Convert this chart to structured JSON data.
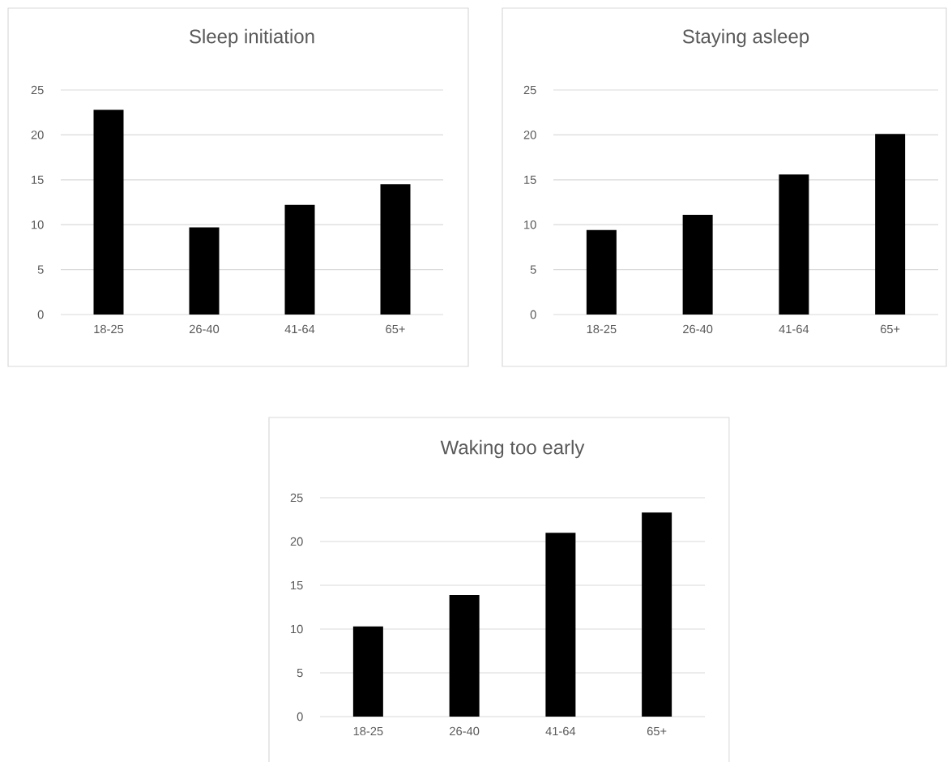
{
  "chart_data": [
    {
      "type": "bar",
      "title": "Sleep initiation",
      "categories": [
        "18-25",
        "26-40",
        "41-64",
        "65+"
      ],
      "values": [
        22.8,
        9.7,
        12.2,
        14.5
      ],
      "color": "#000000",
      "ylim": [
        0,
        25
      ],
      "yticks": [
        0,
        5,
        10,
        15,
        20,
        25
      ],
      "grid": "y"
    },
    {
      "type": "bar",
      "title": "Staying asleep",
      "categories": [
        "18-25",
        "26-40",
        "41-64",
        "65+"
      ],
      "values": [
        9.4,
        11.1,
        15.6,
        20.1
      ],
      "color": "#000000",
      "ylim": [
        0,
        25
      ],
      "yticks": [
        0,
        5,
        10,
        15,
        20,
        25
      ],
      "grid": "y"
    },
    {
      "type": "bar",
      "title": "Waking too early",
      "categories": [
        "18-25",
        "26-40",
        "41-64",
        "65+"
      ],
      "values": [
        10.3,
        13.9,
        21.0,
        23.3
      ],
      "color": "#000000",
      "ylim": [
        0,
        25
      ],
      "yticks": [
        0,
        5,
        10,
        15,
        20,
        25
      ],
      "grid": "y"
    }
  ]
}
